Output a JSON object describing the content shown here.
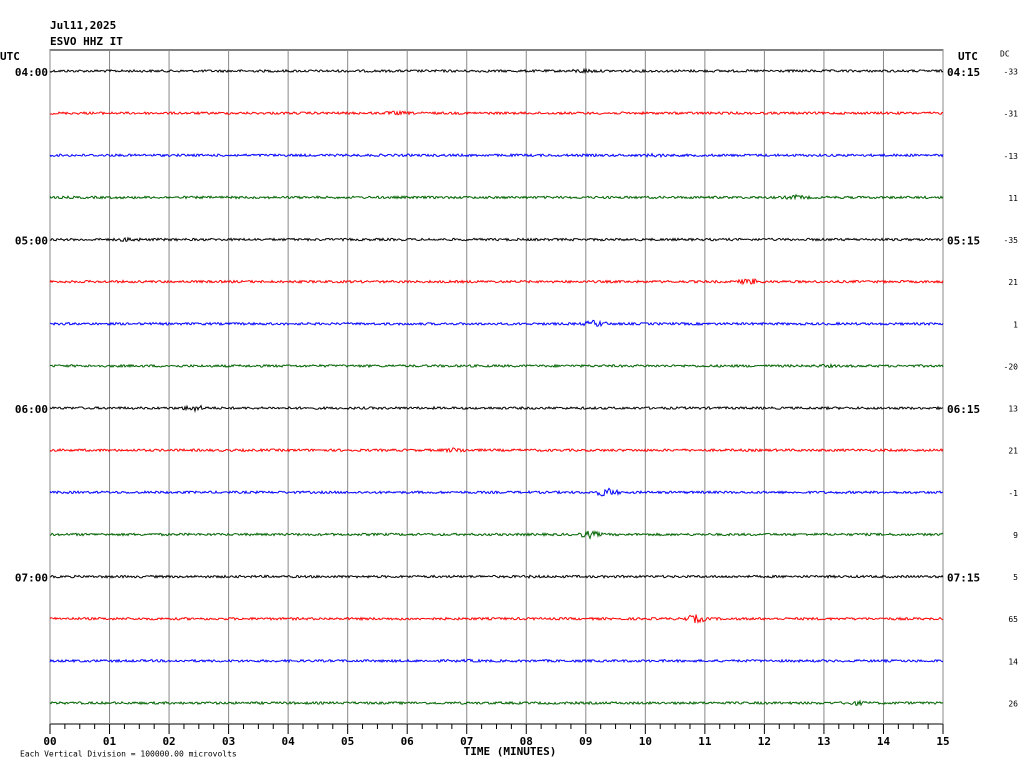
{
  "chart_data": {
    "type": "helicorder",
    "title": "Jul11,2025",
    "subtitle": "ESVO HHZ IT",
    "left_axis_label": "UTC",
    "right_axis_label": "UTC",
    "dc_label": "DC",
    "xlabel": "TIME (MINUTES)",
    "note": "Each Vertical Division = 100000.00 microvolts",
    "xlim": [
      0,
      15
    ],
    "xticks": [
      {
        "value": 0,
        "label": "00"
      },
      {
        "value": 1,
        "label": "01"
      },
      {
        "value": 2,
        "label": "02"
      },
      {
        "value": 3,
        "label": "03"
      },
      {
        "value": 4,
        "label": "04"
      },
      {
        "value": 5,
        "label": "05"
      },
      {
        "value": 6,
        "label": "06"
      },
      {
        "value": 7,
        "label": "07"
      },
      {
        "value": 8,
        "label": "08"
      },
      {
        "value": 9,
        "label": "09"
      },
      {
        "value": 10,
        "label": "10"
      },
      {
        "value": 11,
        "label": "11"
      },
      {
        "value": 12,
        "label": "12"
      },
      {
        "value": 13,
        "label": "13"
      },
      {
        "value": 14,
        "label": "14"
      },
      {
        "value": 15,
        "label": "15"
      }
    ],
    "grid": true,
    "rows": [
      {
        "left": "04:00",
        "right": "04:15",
        "dc": -33,
        "color": "#000000"
      },
      {
        "left": null,
        "right": null,
        "dc": -31,
        "color": "#ff0000"
      },
      {
        "left": null,
        "right": null,
        "dc": -13,
        "color": "#0000ff"
      },
      {
        "left": null,
        "right": null,
        "dc": 11,
        "color": "#006400"
      },
      {
        "left": "05:00",
        "right": "05:15",
        "dc": -35,
        "color": "#000000"
      },
      {
        "left": null,
        "right": null,
        "dc": 21,
        "color": "#ff0000"
      },
      {
        "left": null,
        "right": null,
        "dc": 1,
        "color": "#0000ff"
      },
      {
        "left": null,
        "right": null,
        "dc": -20,
        "color": "#006400"
      },
      {
        "left": "06:00",
        "right": "06:15",
        "dc": 13,
        "color": "#000000"
      },
      {
        "left": null,
        "right": null,
        "dc": 21,
        "color": "#ff0000"
      },
      {
        "left": null,
        "right": null,
        "dc": -1,
        "color": "#0000ff"
      },
      {
        "left": null,
        "right": null,
        "dc": 9,
        "color": "#006400"
      },
      {
        "left": "07:00",
        "right": "07:15",
        "dc": 5,
        "color": "#000000"
      },
      {
        "left": null,
        "right": null,
        "dc": 65,
        "color": "#ff0000"
      },
      {
        "left": null,
        "right": null,
        "dc": 14,
        "color": "#0000ff"
      },
      {
        "left": null,
        "right": null,
        "dc": 26,
        "color": "#006400"
      }
    ]
  }
}
